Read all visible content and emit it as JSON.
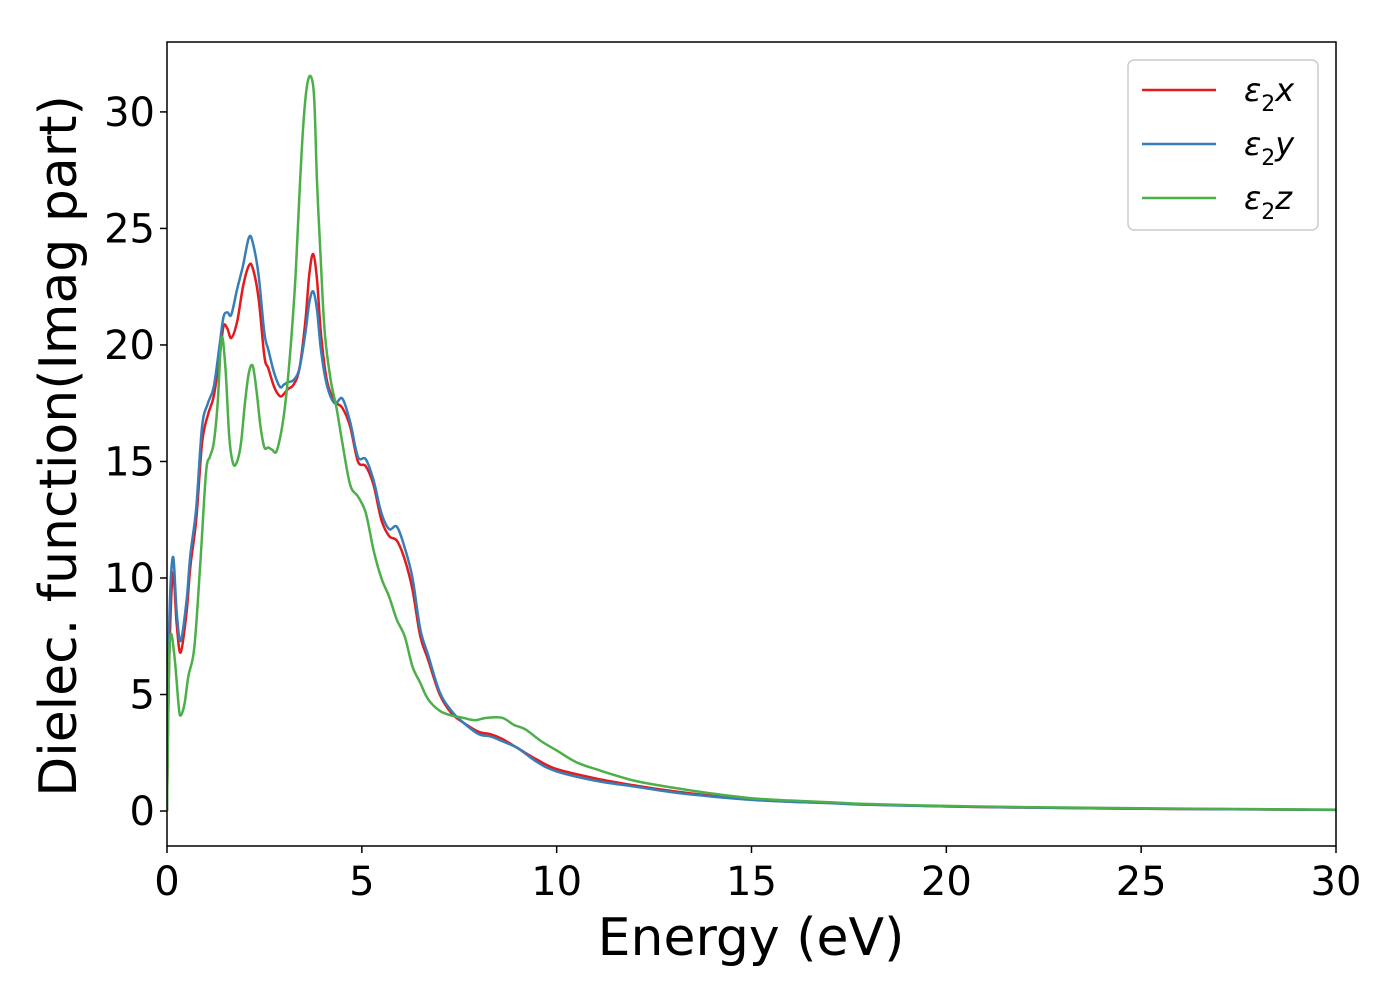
{
  "colors": {
    "background": "#ffffff",
    "axes": "#000000",
    "legend_border": "#cccccc"
  },
  "chart_data": {
    "type": "line",
    "title": "",
    "xlabel": "Energy (eV)",
    "ylabel": "Dielec. function(Imag part)",
    "xlim": [
      0,
      30
    ],
    "ylim": [
      -1.5,
      33
    ],
    "xticks": [
      0,
      5,
      10,
      15,
      20,
      25,
      30
    ],
    "yticks": [
      0,
      5,
      10,
      15,
      20,
      25,
      30
    ],
    "grid": false,
    "legend_position": "top-right",
    "series": [
      {
        "name": "ε2x",
        "legend": {
          "base": "ε",
          "sub": "2",
          "suffix": "x"
        },
        "color": "#e41a1c",
        "x": [
          0,
          0.05,
          0.15,
          0.25,
          0.35,
          0.5,
          0.6,
          0.75,
          0.9,
          1.05,
          1.2,
          1.35,
          1.45,
          1.55,
          1.65,
          1.8,
          1.95,
          2.1,
          2.2,
          2.35,
          2.5,
          2.6,
          2.75,
          2.9,
          3.0,
          3.1,
          3.25,
          3.4,
          3.55,
          3.65,
          3.75,
          3.85,
          3.95,
          4.1,
          4.3,
          4.5,
          4.7,
          4.9,
          5.1,
          5.3,
          5.5,
          5.7,
          5.9,
          6.1,
          6.3,
          6.5,
          6.7,
          7.0,
          7.3,
          7.6,
          8.0,
          8.3,
          8.6,
          9.0,
          9.5,
          10.0,
          11.0,
          12.0,
          13.0,
          14.0,
          15.0,
          16.0,
          17.0,
          18.0,
          20.0,
          22.0,
          25.0,
          28.0,
          30.0
        ],
        "y": [
          0,
          6.0,
          10.2,
          8.0,
          6.8,
          8.5,
          10.5,
          12.5,
          15.8,
          17.0,
          17.8,
          19.5,
          20.8,
          20.7,
          20.3,
          21.0,
          22.5,
          23.4,
          23.3,
          22.0,
          19.5,
          19.0,
          18.2,
          17.8,
          17.9,
          18.1,
          18.3,
          19.0,
          21.0,
          23.0,
          23.9,
          22.8,
          20.5,
          18.5,
          17.6,
          17.3,
          16.5,
          15.0,
          14.8,
          14.0,
          12.5,
          11.8,
          11.6,
          10.8,
          9.5,
          7.5,
          6.5,
          5.0,
          4.2,
          3.8,
          3.4,
          3.3,
          3.1,
          2.7,
          2.2,
          1.8,
          1.4,
          1.1,
          0.85,
          0.65,
          0.5,
          0.4,
          0.35,
          0.28,
          0.2,
          0.15,
          0.1,
          0.07,
          0.05
        ]
      },
      {
        "name": "ε2y",
        "legend": {
          "base": "ε",
          "sub": "2",
          "suffix": "y"
        },
        "color": "#377eb8",
        "x": [
          0,
          0.05,
          0.15,
          0.25,
          0.35,
          0.5,
          0.6,
          0.75,
          0.9,
          1.05,
          1.2,
          1.35,
          1.45,
          1.55,
          1.65,
          1.8,
          1.95,
          2.1,
          2.2,
          2.35,
          2.5,
          2.6,
          2.75,
          2.9,
          3.0,
          3.1,
          3.25,
          3.4,
          3.55,
          3.65,
          3.75,
          3.85,
          3.95,
          4.1,
          4.3,
          4.5,
          4.7,
          4.9,
          5.1,
          5.3,
          5.5,
          5.7,
          5.9,
          6.1,
          6.3,
          6.5,
          6.7,
          7.0,
          7.3,
          7.6,
          8.0,
          8.3,
          8.6,
          9.0,
          9.5,
          10.0,
          11.0,
          12.0,
          13.0,
          14.0,
          15.0,
          16.0,
          17.0,
          18.0,
          20.0,
          22.0,
          25.0,
          28.0,
          30.0
        ],
        "y": [
          0,
          7.5,
          10.9,
          8.5,
          7.3,
          9.0,
          11.0,
          13.0,
          16.5,
          17.5,
          18.2,
          20.0,
          21.2,
          21.4,
          21.3,
          22.4,
          23.4,
          24.6,
          24.4,
          23.0,
          20.5,
          19.8,
          18.8,
          18.2,
          18.3,
          18.4,
          18.5,
          19.0,
          20.5,
          21.8,
          22.3,
          21.5,
          19.8,
          18.3,
          17.5,
          17.7,
          16.7,
          15.2,
          15.1,
          14.2,
          12.8,
          12.1,
          12.2,
          11.3,
          10.0,
          7.8,
          6.7,
          5.1,
          4.3,
          3.8,
          3.3,
          3.2,
          3.0,
          2.7,
          2.1,
          1.7,
          1.3,
          1.05,
          0.8,
          0.62,
          0.48,
          0.4,
          0.34,
          0.27,
          0.2,
          0.15,
          0.1,
          0.07,
          0.05
        ]
      },
      {
        "name": "ε2z",
        "legend": {
          "base": "ε",
          "sub": "2",
          "suffix": "z"
        },
        "color": "#4daf4a",
        "x": [
          0,
          0.05,
          0.1,
          0.2,
          0.3,
          0.35,
          0.45,
          0.55,
          0.7,
          0.85,
          1.0,
          1.1,
          1.2,
          1.3,
          1.4,
          1.5,
          1.6,
          1.7,
          1.8,
          1.9,
          2.0,
          2.1,
          2.2,
          2.3,
          2.4,
          2.5,
          2.6,
          2.7,
          2.8,
          2.9,
          3.0,
          3.1,
          3.2,
          3.3,
          3.4,
          3.5,
          3.6,
          3.7,
          3.78,
          3.85,
          3.95,
          4.05,
          4.2,
          4.35,
          4.5,
          4.7,
          4.9,
          5.1,
          5.3,
          5.5,
          5.7,
          5.9,
          6.1,
          6.3,
          6.5,
          6.7,
          7.0,
          7.3,
          7.6,
          7.9,
          8.2,
          8.6,
          8.9,
          9.2,
          9.6,
          10.0,
          10.5,
          11.0,
          12.0,
          13.0,
          14.0,
          15.0,
          16.0,
          17.0,
          18.0,
          20.0,
          22.0,
          25.0,
          28.0,
          30.0
        ],
        "y": [
          0,
          6.0,
          7.6,
          6.5,
          4.5,
          4.1,
          4.6,
          5.8,
          7.0,
          10.5,
          14.5,
          15.2,
          15.8,
          17.5,
          20.3,
          19.0,
          16.0,
          14.9,
          15.0,
          15.8,
          17.5,
          18.8,
          19.1,
          18.0,
          16.5,
          15.6,
          15.6,
          15.5,
          15.4,
          16.0,
          17.0,
          18.5,
          20.5,
          23.0,
          26.5,
          29.5,
          31.2,
          31.5,
          30.5,
          27.0,
          23.5,
          20.5,
          18.5,
          17.3,
          15.8,
          14.0,
          13.5,
          12.8,
          11.2,
          10.0,
          9.2,
          8.2,
          7.5,
          6.2,
          5.5,
          4.8,
          4.3,
          4.1,
          4.0,
          3.9,
          4.0,
          4.0,
          3.7,
          3.5,
          3.0,
          2.6,
          2.1,
          1.8,
          1.3,
          1.0,
          0.75,
          0.55,
          0.45,
          0.38,
          0.3,
          0.22,
          0.17,
          0.12,
          0.08,
          0.06
        ]
      }
    ]
  }
}
